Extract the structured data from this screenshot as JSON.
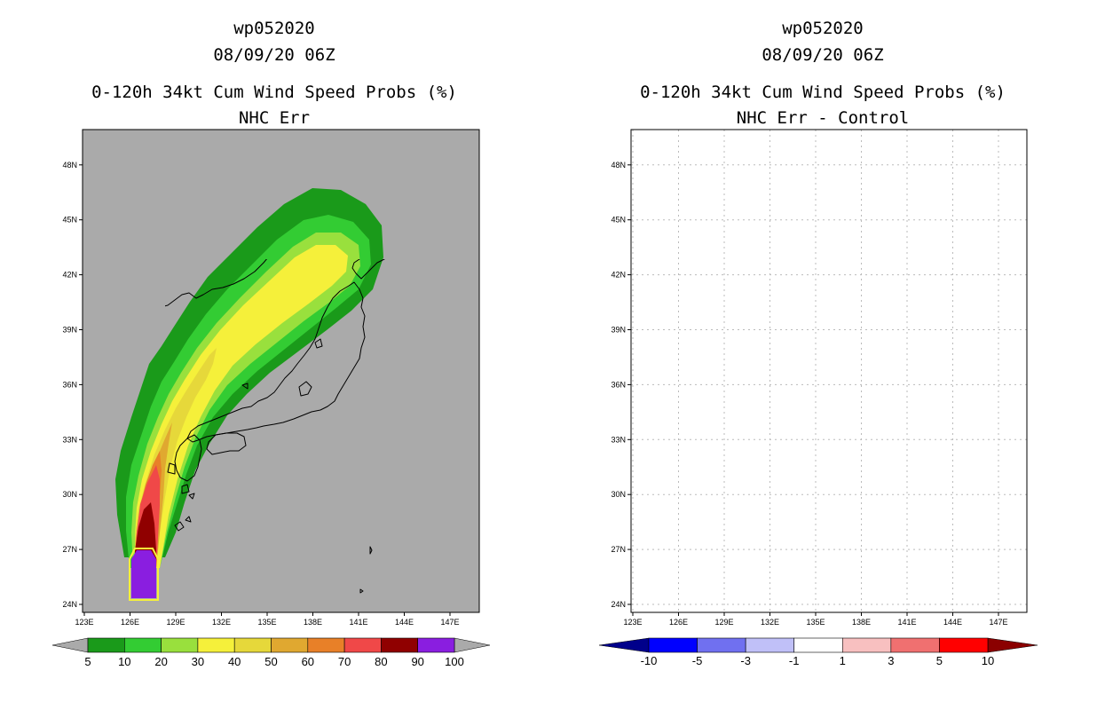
{
  "left_panel": {
    "title_lines": [
      "wp052020",
      "08/09/20 06Z",
      "0-120h 34kt Cum Wind Speed Probs (%)",
      "NHC Err"
    ],
    "background_color": "#aaaaaa",
    "lon_ticks": [
      "123E",
      "126E",
      "129E",
      "132E",
      "135E",
      "138E",
      "141E",
      "144E",
      "147E"
    ],
    "lat_ticks": [
      "24N",
      "27N",
      "30N",
      "33N",
      "36N",
      "39N",
      "42N",
      "45N",
      "48N"
    ],
    "colorbar": {
      "colors": [
        "#1a9a1a",
        "#33cc33",
        "#99e03d",
        "#f5f03a",
        "#e6d83a",
        "#e0a830",
        "#e88028",
        "#f04848",
        "#900000",
        "#8a1ee0"
      ],
      "end_colors": [
        "#aaaaaa",
        "#aaaaaa"
      ],
      "labels": [
        "5",
        "10",
        "20",
        "30",
        "40",
        "50",
        "60",
        "70",
        "80",
        "90",
        "100"
      ]
    }
  },
  "right_panel": {
    "title_lines": [
      "wp052020",
      "08/09/20 06Z",
      "0-120h 34kt Cum Wind Speed Probs (%)",
      "NHC Err - Control"
    ],
    "background_color": "#ffffff",
    "lon_ticks": [
      "123E",
      "126E",
      "129E",
      "132E",
      "135E",
      "138E",
      "141E",
      "144E",
      "147E"
    ],
    "lat_ticks": [
      "24N",
      "27N",
      "30N",
      "33N",
      "36N",
      "39N",
      "42N",
      "45N",
      "48N"
    ],
    "colorbar": {
      "colors": [
        "#0000ff",
        "#7070f0",
        "#c0c0f8",
        "#ffffff",
        "#f8c0c0",
        "#f07070",
        "#ff0000"
      ],
      "end_colors": [
        "#00008b",
        "#8b0000"
      ],
      "labels": [
        "-10",
        "-5",
        "-3",
        "-1",
        "1",
        "3",
        "5",
        "10"
      ]
    }
  }
}
